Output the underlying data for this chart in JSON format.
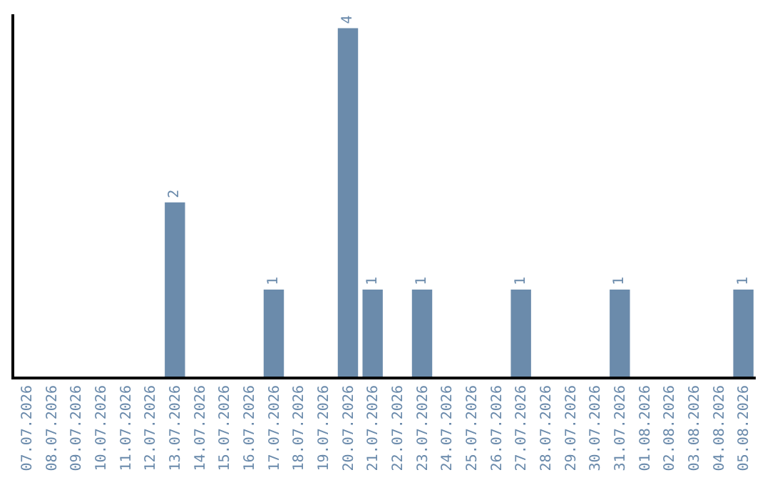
{
  "chart_data": {
    "type": "bar",
    "categories": [
      "07.07.2026",
      "08.07.2026",
      "09.07.2026",
      "10.07.2026",
      "11.07.2026",
      "12.07.2026",
      "13.07.2026",
      "14.07.2026",
      "15.07.2026",
      "16.07.2026",
      "17.07.2026",
      "18.07.2026",
      "19.07.2026",
      "20.07.2026",
      "21.07.2026",
      "22.07.2026",
      "23.07.2026",
      "24.07.2026",
      "25.07.2026",
      "26.07.2026",
      "27.07.2026",
      "28.07.2026",
      "29.07.2026",
      "30.07.2026",
      "31.07.2026",
      "01.08.2026",
      "02.08.2026",
      "03.08.2026",
      "04.08.2026",
      "05.08.2026"
    ],
    "values": [
      0,
      0,
      0,
      0,
      0,
      0,
      2,
      0,
      0,
      0,
      1,
      0,
      0,
      4,
      1,
      0,
      1,
      0,
      0,
      0,
      1,
      0,
      0,
      0,
      1,
      0,
      0,
      0,
      0,
      1
    ],
    "value_labels": [
      null,
      null,
      null,
      null,
      null,
      null,
      "2",
      null,
      null,
      null,
      "1",
      null,
      null,
      "4",
      "1",
      null,
      "1",
      null,
      null,
      null,
      "1",
      null,
      null,
      null,
      "1",
      null,
      null,
      null,
      null,
      "1"
    ],
    "color": "#6b8bab",
    "tick_labels": "x"
  }
}
